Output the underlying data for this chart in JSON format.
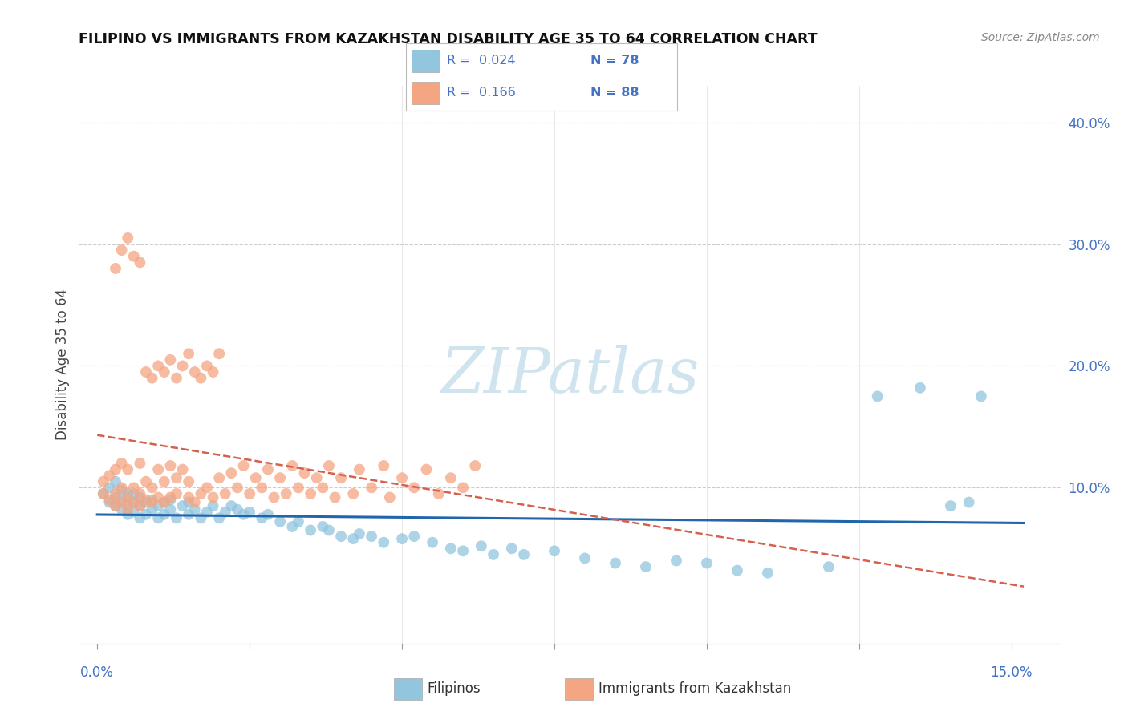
{
  "title": "FILIPINO VS IMMIGRANTS FROM KAZAKHSTAN DISABILITY AGE 35 TO 64 CORRELATION CHART",
  "source": "Source: ZipAtlas.com",
  "ylabel": "Disability Age 35 to 64",
  "color_blue": "#92c5de",
  "color_pink": "#f4a582",
  "trendline_blue_color": "#2166ac",
  "trendline_pink_color": "#d6604d",
  "watermark": "ZIPatlas",
  "watermark_color": "#d0e4f0",
  "filipinos_x": [
    0.001,
    0.002,
    0.002,
    0.003,
    0.003,
    0.003,
    0.004,
    0.004,
    0.004,
    0.005,
    0.005,
    0.005,
    0.006,
    0.006,
    0.006,
    0.007,
    0.007,
    0.007,
    0.008,
    0.008,
    0.009,
    0.009,
    0.01,
    0.01,
    0.011,
    0.011,
    0.012,
    0.012,
    0.013,
    0.014,
    0.015,
    0.015,
    0.016,
    0.017,
    0.018,
    0.019,
    0.02,
    0.021,
    0.022,
    0.023,
    0.024,
    0.025,
    0.027,
    0.028,
    0.03,
    0.032,
    0.033,
    0.035,
    0.037,
    0.038,
    0.04,
    0.042,
    0.043,
    0.045,
    0.047,
    0.05,
    0.052,
    0.055,
    0.058,
    0.06,
    0.063,
    0.065,
    0.068,
    0.07,
    0.075,
    0.08,
    0.085,
    0.09,
    0.095,
    0.1,
    0.105,
    0.11,
    0.12,
    0.128,
    0.135,
    0.14,
    0.143,
    0.145
  ],
  "filipinos_y": [
    0.095,
    0.088,
    0.1,
    0.085,
    0.092,
    0.105,
    0.082,
    0.09,
    0.098,
    0.078,
    0.086,
    0.095,
    0.08,
    0.088,
    0.095,
    0.075,
    0.085,
    0.092,
    0.078,
    0.088,
    0.082,
    0.09,
    0.075,
    0.085,
    0.078,
    0.088,
    0.082,
    0.09,
    0.075,
    0.085,
    0.078,
    0.088,
    0.082,
    0.075,
    0.08,
    0.085,
    0.075,
    0.08,
    0.085,
    0.082,
    0.078,
    0.08,
    0.075,
    0.078,
    0.072,
    0.068,
    0.072,
    0.065,
    0.068,
    0.065,
    0.06,
    0.058,
    0.062,
    0.06,
    0.055,
    0.058,
    0.06,
    0.055,
    0.05,
    0.048,
    0.052,
    0.045,
    0.05,
    0.045,
    0.048,
    0.042,
    0.038,
    0.035,
    0.04,
    0.038,
    0.032,
    0.03,
    0.035,
    0.175,
    0.182,
    0.085,
    0.088,
    0.175
  ],
  "kazakhstan_x": [
    0.001,
    0.001,
    0.002,
    0.002,
    0.003,
    0.003,
    0.003,
    0.004,
    0.004,
    0.004,
    0.005,
    0.005,
    0.005,
    0.006,
    0.006,
    0.007,
    0.007,
    0.007,
    0.008,
    0.008,
    0.009,
    0.009,
    0.01,
    0.01,
    0.011,
    0.011,
    0.012,
    0.012,
    0.013,
    0.013,
    0.014,
    0.015,
    0.015,
    0.016,
    0.017,
    0.018,
    0.019,
    0.02,
    0.021,
    0.022,
    0.023,
    0.024,
    0.025,
    0.026,
    0.027,
    0.028,
    0.029,
    0.03,
    0.031,
    0.032,
    0.033,
    0.034,
    0.035,
    0.036,
    0.037,
    0.038,
    0.039,
    0.04,
    0.042,
    0.043,
    0.045,
    0.047,
    0.048,
    0.05,
    0.052,
    0.054,
    0.056,
    0.058,
    0.06,
    0.062,
    0.003,
    0.004,
    0.005,
    0.006,
    0.007,
    0.008,
    0.009,
    0.01,
    0.011,
    0.012,
    0.013,
    0.014,
    0.015,
    0.016,
    0.017,
    0.018,
    0.019,
    0.02
  ],
  "kazakhstan_y": [
    0.095,
    0.105,
    0.09,
    0.11,
    0.085,
    0.095,
    0.115,
    0.088,
    0.1,
    0.12,
    0.082,
    0.092,
    0.115,
    0.088,
    0.1,
    0.085,
    0.095,
    0.12,
    0.09,
    0.105,
    0.088,
    0.1,
    0.092,
    0.115,
    0.088,
    0.105,
    0.092,
    0.118,
    0.095,
    0.108,
    0.115,
    0.092,
    0.105,
    0.088,
    0.095,
    0.1,
    0.092,
    0.108,
    0.095,
    0.112,
    0.1,
    0.118,
    0.095,
    0.108,
    0.1,
    0.115,
    0.092,
    0.108,
    0.095,
    0.118,
    0.1,
    0.112,
    0.095,
    0.108,
    0.1,
    0.118,
    0.092,
    0.108,
    0.095,
    0.115,
    0.1,
    0.118,
    0.092,
    0.108,
    0.1,
    0.115,
    0.095,
    0.108,
    0.1,
    0.118,
    0.28,
    0.295,
    0.305,
    0.29,
    0.285,
    0.195,
    0.19,
    0.2,
    0.195,
    0.205,
    0.19,
    0.2,
    0.21,
    0.195,
    0.19,
    0.2,
    0.195,
    0.21
  ],
  "xlim": [
    -0.003,
    0.158
  ],
  "ylim": [
    -0.028,
    0.43
  ],
  "yticks": [
    0.1,
    0.2,
    0.3,
    0.4
  ],
  "xticks": [
    0.0,
    0.025,
    0.05,
    0.075,
    0.1,
    0.125,
    0.15
  ]
}
